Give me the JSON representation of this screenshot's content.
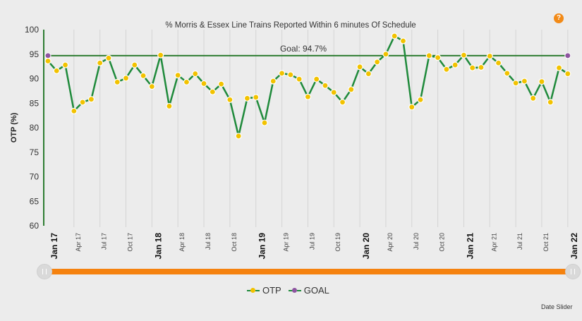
{
  "chart_data": {
    "type": "line",
    "title": "% Morris & Essex Line Trains Reported Within 6 minutes Of Schedule",
    "ylabel": "OTP (%)",
    "xlabel": "",
    "ylim": [
      60,
      100
    ],
    "yticks": [
      60,
      65,
      70,
      75,
      80,
      85,
      90,
      95,
      100
    ],
    "xtick_labels": [
      "Jan 17",
      "Apr 17",
      "Jul 17",
      "Oct 17",
      "Jan 18",
      "Apr 18",
      "Jul 18",
      "Oct 18",
      "Jan 19",
      "Apr 19",
      "Jul 19",
      "Oct 19",
      "Jan 20",
      "Apr 20",
      "Jul 20",
      "Oct 20",
      "Jan 21",
      "Apr 21",
      "Jul 21",
      "Oct 21",
      "Jan 22"
    ],
    "grid": "vertical",
    "legend_position": "bottom",
    "series": [
      {
        "name": "OTP",
        "color": "#1f8a3b",
        "marker_color": "#f2c200",
        "values": [
          93.6,
          91.6,
          92.8,
          83.4,
          85.2,
          85.8,
          93.2,
          94.2,
          89.3,
          90.1,
          92.8,
          90.6,
          88.4,
          94.8,
          84.4,
          90.7,
          89.3,
          91.0,
          89.0,
          87.3,
          88.9,
          85.7,
          78.3,
          86.0,
          86.2,
          81.0,
          89.5,
          91.1,
          90.8,
          89.9,
          86.3,
          89.9,
          88.6,
          87.2,
          85.2,
          87.8,
          92.4,
          91.0,
          93.4,
          95.0,
          98.7,
          97.7,
          84.2,
          85.7,
          94.7,
          94.3,
          91.9,
          92.8,
          94.8,
          92.2,
          92.3,
          94.6,
          93.2,
          91.1,
          89.1,
          89.5,
          86.0,
          89.4,
          85.2,
          92.2,
          91.0
        ]
      },
      {
        "name": "GOAL",
        "color": "#2e7d32",
        "marker_color": "#8e55a0",
        "value": 94.7
      }
    ],
    "annotations": [
      "Goal: 94.7%"
    ]
  },
  "ui": {
    "help": "?",
    "date_slider_label": "Date Slider"
  }
}
